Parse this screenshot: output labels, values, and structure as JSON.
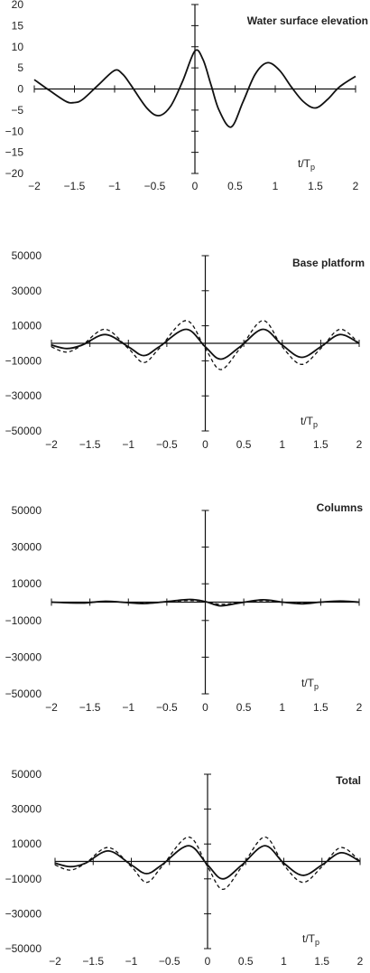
{
  "chart_data": [
    {
      "type": "line",
      "title": "Water surface elevation",
      "xlabel": "t/T_p",
      "ylabel": "",
      "xlim": [
        -2,
        2
      ],
      "ylim": [
        -20,
        20
      ],
      "x_ticks": [
        "-2",
        "-1.5",
        "-1",
        "-0.5",
        "0",
        "0.5",
        "1",
        "1.5",
        "2"
      ],
      "y_ticks": [
        "20",
        "15",
        "10",
        "5",
        "0",
        "-5",
        "-10",
        "-15",
        "-20"
      ],
      "grid": false,
      "series": [
        {
          "style": "solid",
          "x": [
            -2.0,
            -1.8,
            -1.6,
            -1.5,
            -1.4,
            -1.2,
            -1.0,
            -0.9,
            -0.8,
            -0.6,
            -0.45,
            -0.3,
            -0.15,
            0.0,
            0.1,
            0.2,
            0.3,
            0.45,
            0.6,
            0.75,
            0.9,
            1.05,
            1.2,
            1.35,
            1.5,
            1.65,
            1.8,
            2.0
          ],
          "y": [
            2.2,
            -0.5,
            -3.0,
            -3.2,
            -2.5,
            1.0,
            4.4,
            3.5,
            1.0,
            -4.5,
            -6.3,
            -4.0,
            2.0,
            9.0,
            7.0,
            1.0,
            -5.0,
            -9.0,
            -3.0,
            3.5,
            6.2,
            4.5,
            0.5,
            -3.0,
            -4.5,
            -2.5,
            0.5,
            3.0
          ]
        }
      ]
    },
    {
      "type": "line",
      "title": "Base platform",
      "xlabel": "t/T_p",
      "ylabel": "",
      "xlim": [
        -2,
        2
      ],
      "ylim": [
        -50000,
        50000
      ],
      "x_ticks": [
        "-2",
        "-1.5",
        "-1",
        "-0.5",
        "0",
        "0.5",
        "1",
        "1.5",
        "2"
      ],
      "y_ticks": [
        "50000",
        "30000",
        "10000",
        "-10000",
        "-30000",
        "-50000"
      ],
      "grid": false,
      "series": [
        {
          "style": "solid",
          "x": [
            -2.0,
            -1.8,
            -1.6,
            -1.3,
            -1.0,
            -0.8,
            -0.6,
            -0.25,
            0.0,
            0.2,
            0.45,
            0.75,
            1.0,
            1.25,
            1.5,
            1.75,
            2.0
          ],
          "y": [
            -1000,
            -3000,
            -1000,
            5000,
            -2000,
            -7000,
            -2000,
            8000,
            -2000,
            -9000,
            -2000,
            8000,
            -1000,
            -8000,
            -2000,
            5000,
            0
          ]
        },
        {
          "style": "dashed",
          "x": [
            -2.0,
            -1.8,
            -1.6,
            -1.3,
            -1.0,
            -0.8,
            -0.6,
            -0.25,
            0.0,
            0.2,
            0.45,
            0.75,
            1.0,
            1.25,
            1.5,
            1.75,
            2.0
          ],
          "y": [
            -2000,
            -5000,
            -1000,
            8000,
            -3000,
            -11000,
            -3000,
            13000,
            -3000,
            -15000,
            -3000,
            13000,
            -2000,
            -12000,
            -3000,
            8000,
            0
          ]
        }
      ]
    },
    {
      "type": "line",
      "title": "Columns",
      "xlabel": "t/T_p",
      "ylabel": "",
      "xlim": [
        -2,
        2
      ],
      "ylim": [
        -50000,
        50000
      ],
      "x_ticks": [
        "-2",
        "-1.5",
        "-1",
        "-0.5",
        "0",
        "0.5",
        "1",
        "1.5",
        "2"
      ],
      "y_ticks": [
        "50000",
        "30000",
        "10000",
        "-10000",
        "-30000",
        "-50000"
      ],
      "grid": false,
      "series": [
        {
          "style": "solid",
          "x": [
            -2.0,
            -1.6,
            -1.3,
            -1.0,
            -0.8,
            -0.5,
            -0.2,
            0.0,
            0.2,
            0.45,
            0.75,
            1.0,
            1.25,
            1.5,
            1.75,
            2.0
          ],
          "y": [
            0,
            -500,
            500,
            -300,
            -800,
            300,
            1500,
            300,
            -2000,
            -400,
            1300,
            0,
            -900,
            0,
            600,
            0
          ]
        },
        {
          "style": "dashed",
          "x": [
            -2.0,
            -1.6,
            -1.3,
            -1.0,
            -0.8,
            -0.5,
            -0.2,
            0.0,
            0.2,
            0.45,
            0.75,
            1.0,
            1.25,
            1.5,
            1.75,
            2.0
          ],
          "y": [
            0,
            -300,
            300,
            -200,
            -500,
            200,
            900,
            200,
            -1200,
            -300,
            800,
            0,
            -500,
            0,
            400,
            0
          ]
        }
      ]
    },
    {
      "type": "line",
      "title": "Total",
      "xlabel": "t/T_p",
      "ylabel": "",
      "xlim": [
        -2,
        2
      ],
      "ylim": [
        -50000,
        50000
      ],
      "x_ticks": [
        "-2",
        "-1.5",
        "-1",
        "-0.5",
        "0",
        "0.5",
        "1",
        "1.5",
        "2"
      ],
      "y_ticks": [
        "50000",
        "30000",
        "10000",
        "-10000",
        "-30000",
        "-50000"
      ],
      "grid": false,
      "series": [
        {
          "style": "solid",
          "x": [
            -2.0,
            -1.8,
            -1.6,
            -1.3,
            -1.0,
            -0.8,
            -0.6,
            -0.25,
            0.0,
            0.2,
            0.45,
            0.75,
            1.0,
            1.25,
            1.5,
            1.75,
            2.0
          ],
          "y": [
            -1000,
            -3000,
            -1000,
            6000,
            -2000,
            -7000,
            -2000,
            9000,
            -2000,
            -10000,
            -2000,
            9000,
            -1000,
            -8000,
            -2000,
            5000,
            0
          ]
        },
        {
          "style": "dashed",
          "x": [
            -2.0,
            -1.8,
            -1.6,
            -1.3,
            -1.0,
            -0.8,
            -0.6,
            -0.25,
            0.0,
            0.2,
            0.45,
            0.75,
            1.0,
            1.25,
            1.5,
            1.75,
            2.0
          ],
          "y": [
            -2000,
            -5000,
            -1000,
            8000,
            -3000,
            -12000,
            -3000,
            14000,
            -3000,
            -16000,
            -3000,
            14000,
            -2000,
            -12000,
            -3000,
            8000,
            0
          ]
        }
      ]
    }
  ]
}
